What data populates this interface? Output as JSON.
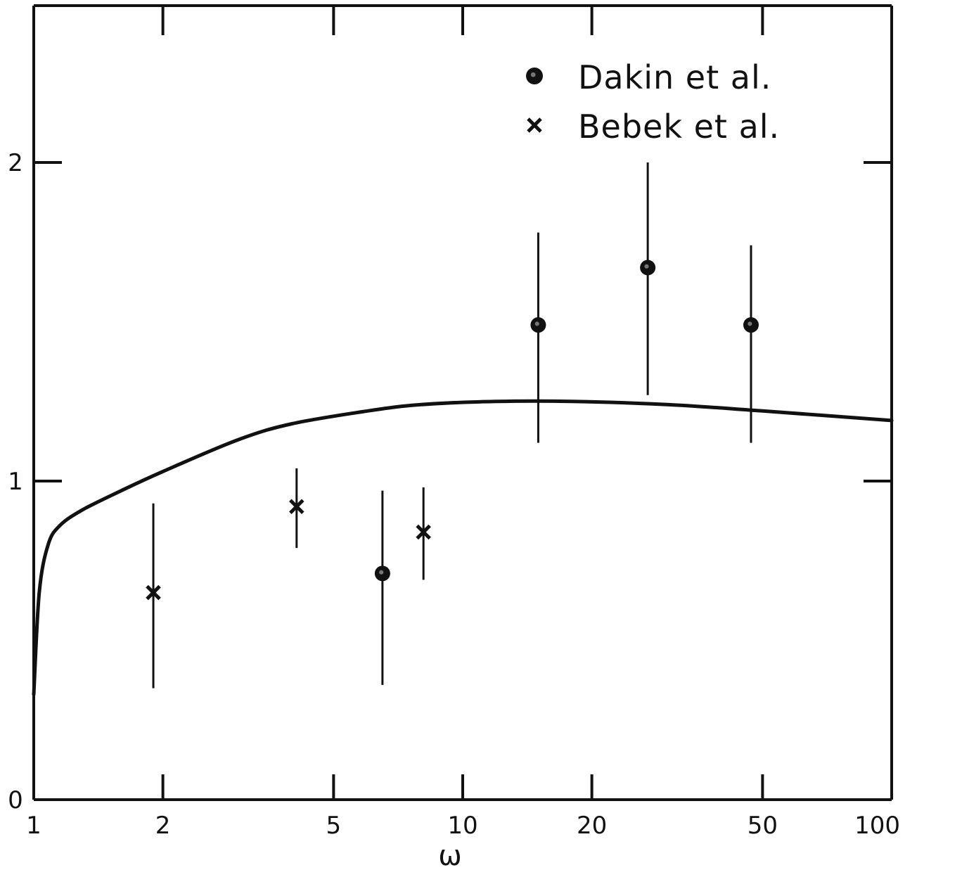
{
  "colors": {
    "ink": "#111111",
    "background": "#ffffff"
  },
  "chart_data": {
    "type": "scatter",
    "xlabel": "ω",
    "ylabel": "",
    "x_scale": "log",
    "xlim": [
      1,
      100
    ],
    "ylim": [
      0,
      2.5
    ],
    "x_ticks": [
      1,
      2,
      5,
      10,
      20,
      50,
      100
    ],
    "x_tick_labels": [
      "1",
      "2",
      "5",
      "10",
      "20",
      "50",
      "100"
    ],
    "y_ticks": [
      0,
      1,
      2
    ],
    "y_tick_labels": [
      "0",
      "1",
      "2"
    ],
    "grid": false,
    "legend_position": "top-right",
    "series": [
      {
        "name": "Dakin et al.",
        "marker": "filled-circle",
        "points": [
          {
            "x": 6.5,
            "y": 0.71,
            "y_low": 0.36,
            "y_high": 0.97
          },
          {
            "x": 15,
            "y": 1.49,
            "y_low": 1.12,
            "y_high": 1.78
          },
          {
            "x": 27,
            "y": 1.67,
            "y_low": 1.27,
            "y_high": 2.0
          },
          {
            "x": 47,
            "y": 1.49,
            "y_low": 1.12,
            "y_high": 1.74
          }
        ]
      },
      {
        "name": "Bebek et al.",
        "marker": "cross",
        "points": [
          {
            "x": 1.9,
            "y": 0.65,
            "y_low": 0.35,
            "y_high": 0.93
          },
          {
            "x": 4.1,
            "y": 0.92,
            "y_low": 0.79,
            "y_high": 1.04
          },
          {
            "x": 8.1,
            "y": 0.84,
            "y_low": 0.69,
            "y_high": 0.98
          }
        ]
      },
      {
        "name": "",
        "type": "line",
        "points": [
          {
            "x": 1.0,
            "y": 0.33
          },
          {
            "x": 1.03,
            "y": 0.65
          },
          {
            "x": 1.08,
            "y": 0.8
          },
          {
            "x": 1.15,
            "y": 0.86
          },
          {
            "x": 1.3,
            "y": 0.91
          },
          {
            "x": 1.6,
            "y": 0.97
          },
          {
            "x": 2.0,
            "y": 1.03
          },
          {
            "x": 3.0,
            "y": 1.13
          },
          {
            "x": 4.0,
            "y": 1.18
          },
          {
            "x": 6.0,
            "y": 1.22
          },
          {
            "x": 8.0,
            "y": 1.24
          },
          {
            "x": 12.0,
            "y": 1.25
          },
          {
            "x": 18.0,
            "y": 1.25
          },
          {
            "x": 30.0,
            "y": 1.24
          },
          {
            "x": 50.0,
            "y": 1.22
          },
          {
            "x": 100.0,
            "y": 1.19
          }
        ]
      }
    ]
  }
}
